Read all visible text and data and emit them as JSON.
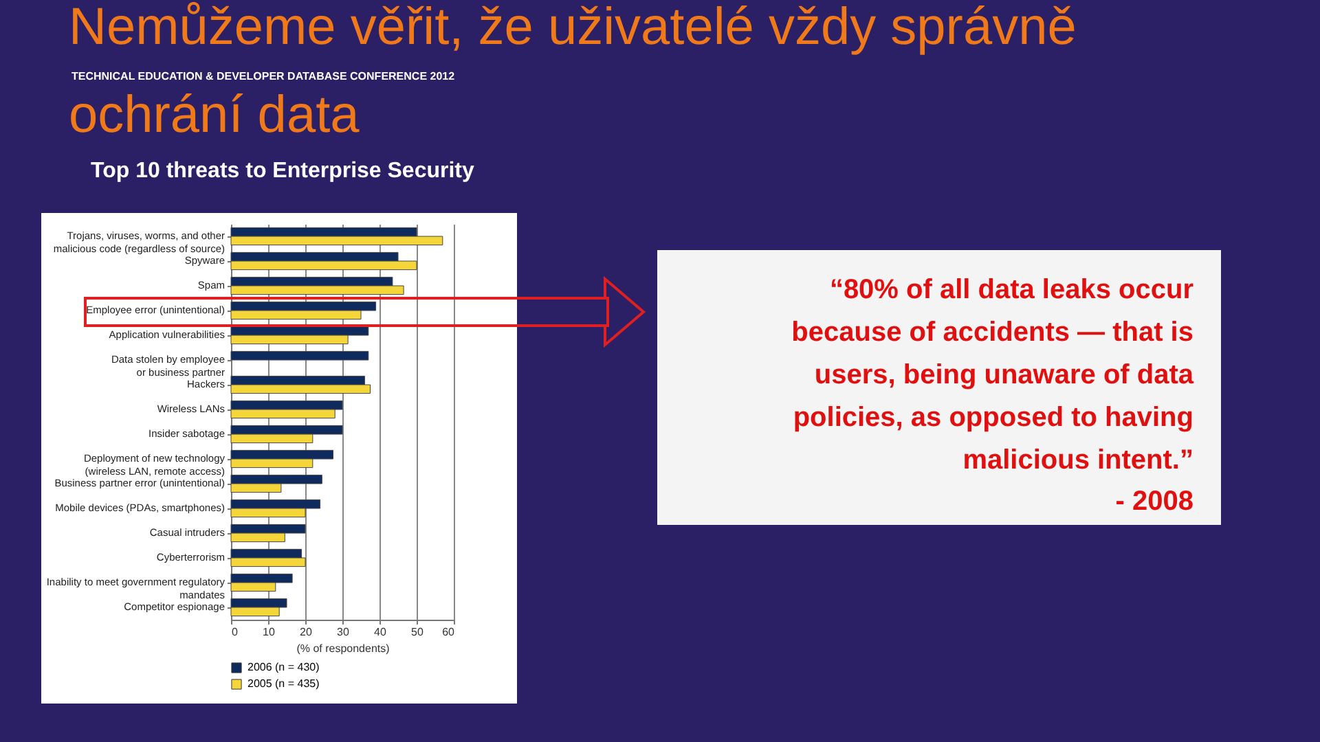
{
  "chart_data": {
    "type": "bar",
    "orientation": "horizontal",
    "title": "Nemůžeme věřit, že uživatelé vždy správně ochrání data",
    "subtitle": "Top 10 threats to Enterprise Security",
    "xlabel": "(% of respondents)",
    "categories": [
      "Trojans, viruses, worms, and other\nmalicious code (regardless of source)",
      "Spyware",
      "Spam",
      "Employee error (unintentional)",
      "Application vulnerabilities",
      "Data stolen by employee\nor business partner",
      "Hackers",
      "Wireless LANs",
      "Insider sabotage",
      "Deployment of new technology\n(wireless LAN, remote access)",
      "Business partner error (unintentional)",
      "Mobile devices (PDAs, smartphones)",
      "Casual intruders",
      "Cyberterrorism",
      "Inability to meet government regulatory\nmandates",
      "Competitor espionage"
    ],
    "series": [
      {
        "name": "2006 (n = 430)",
        "color": "#0f2a5c",
        "values": [
          50,
          45,
          43.5,
          39,
          37,
          37,
          36,
          30,
          30,
          27.5,
          24.5,
          24,
          20,
          19,
          16.5,
          15
        ]
      },
      {
        "name": "2005 (n = 435)",
        "color": "#f5d63a",
        "values": [
          57,
          50,
          46.5,
          35,
          31.5,
          null,
          37.5,
          28,
          22,
          22,
          13.5,
          20,
          14.5,
          20,
          12,
          13
        ]
      }
    ],
    "xlim": [
      0,
      60
    ],
    "xticks": [
      0,
      10,
      20,
      30,
      40,
      50,
      60
    ],
    "grid": "x",
    "legend": "bottom",
    "annotations": [
      "TECHNICAL EDUCATION & DEVELOPER DATABASE CONFERENCE 2012",
      "“80% of all data leaks occur because of accidents — that is users, being unaware of data policies, as opposed to having malicious intent.”",
      "- 2008"
    ]
  }
}
